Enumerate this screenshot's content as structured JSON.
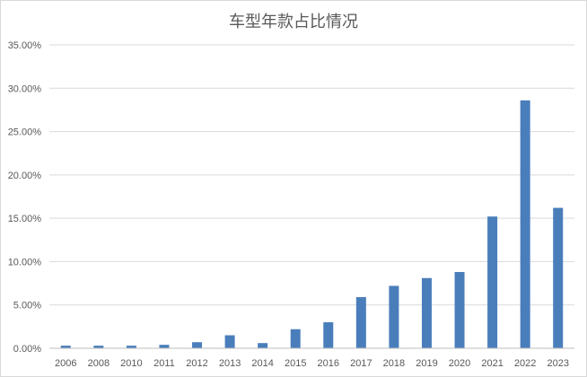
{
  "chart_data": {
    "type": "bar",
    "title": "车型年款占比情况",
    "xlabel": "",
    "ylabel": "",
    "categories": [
      "2006",
      "2008",
      "2010",
      "2011",
      "2012",
      "2013",
      "2014",
      "2015",
      "2016",
      "2017",
      "2018",
      "2019",
      "2020",
      "2021",
      "2022",
      "2023"
    ],
    "values": [
      0.3,
      0.3,
      0.3,
      0.4,
      0.7,
      1.5,
      0.6,
      2.2,
      3.0,
      5.9,
      7.2,
      8.1,
      8.8,
      15.2,
      28.6,
      16.2
    ],
    "ylim": [
      0,
      35
    ],
    "yticks": [
      "0.00%",
      "5.00%",
      "10.00%",
      "15.00%",
      "20.00%",
      "25.00%",
      "30.00%",
      "35.00%"
    ],
    "grid": true,
    "legend": "none",
    "bar_color": "#4a7ebb"
  }
}
